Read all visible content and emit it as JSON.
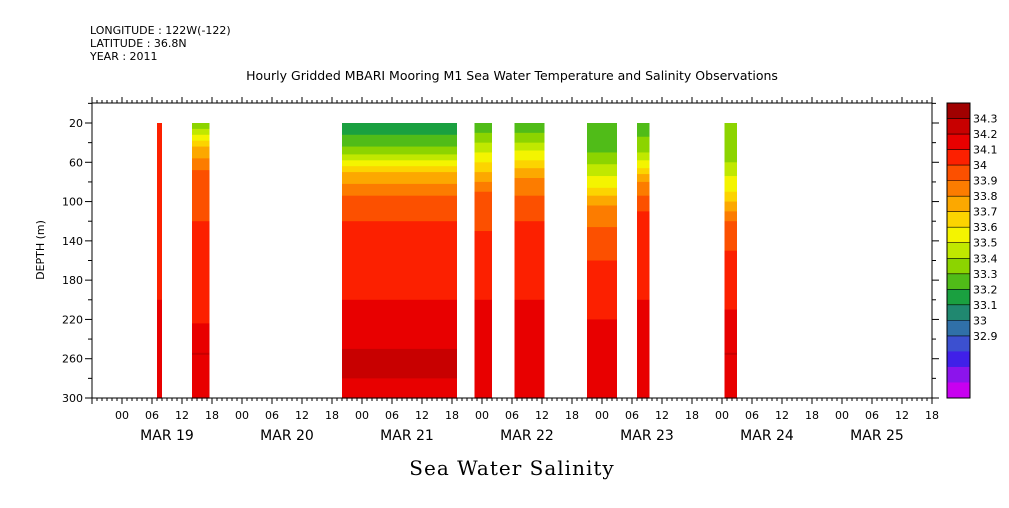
{
  "header": {
    "longitude": "LONGITUDE : 122W(-122)",
    "latitude": "LATITUDE : 36.8N",
    "year": "YEAR : 2011"
  },
  "chart_data": {
    "type": "heatmap",
    "title": "Hourly Gridded MBARI Mooring M1 Sea Water Temperature and Salinity Observations",
    "bottom_label": "Sea Water Salinity",
    "ylabel": "DEPTH (m)",
    "x_unit": "hours since 2011-03-18 18:00",
    "xlim": [
      0,
      168
    ],
    "ylim": [
      300,
      0
    ],
    "y_ticks": [
      20,
      60,
      100,
      140,
      180,
      220,
      260,
      300
    ],
    "x_hour_ticks": [
      {
        "x": 6,
        "label": "00"
      },
      {
        "x": 12,
        "label": "06"
      },
      {
        "x": 18,
        "label": "12"
      },
      {
        "x": 24,
        "label": "18"
      },
      {
        "x": 30,
        "label": "00"
      },
      {
        "x": 36,
        "label": "06"
      },
      {
        "x": 42,
        "label": "12"
      },
      {
        "x": 48,
        "label": "18"
      },
      {
        "x": 54,
        "label": "00"
      },
      {
        "x": 60,
        "label": "06"
      },
      {
        "x": 66,
        "label": "12"
      },
      {
        "x": 72,
        "label": "18"
      },
      {
        "x": 78,
        "label": "00"
      },
      {
        "x": 84,
        "label": "06"
      },
      {
        "x": 90,
        "label": "12"
      },
      {
        "x": 96,
        "label": "18"
      },
      {
        "x": 102,
        "label": "00"
      },
      {
        "x": 108,
        "label": "06"
      },
      {
        "x": 114,
        "label": "12"
      },
      {
        "x": 120,
        "label": "18"
      },
      {
        "x": 126,
        "label": "00"
      },
      {
        "x": 132,
        "label": "06"
      },
      {
        "x": 138,
        "label": "12"
      },
      {
        "x": 144,
        "label": "18"
      },
      {
        "x": 150,
        "label": "00"
      },
      {
        "x": 156,
        "label": "06"
      },
      {
        "x": 162,
        "label": "12"
      },
      {
        "x": 168,
        "label": "18"
      }
    ],
    "x_date_labels": [
      {
        "x": 15,
        "label": "MAR 19"
      },
      {
        "x": 39,
        "label": "MAR 20"
      },
      {
        "x": 63,
        "label": "MAR 21"
      },
      {
        "x": 87,
        "label": "MAR 22"
      },
      {
        "x": 111,
        "label": "MAR 23"
      },
      {
        "x": 135,
        "label": "MAR 24"
      },
      {
        "x": 157,
        "label": "MAR 25"
      }
    ],
    "colorbar": {
      "levels": [
        34.3,
        34.2,
        34.1,
        34,
        33.9,
        33.8,
        33.7,
        33.6,
        33.5,
        33.4,
        33.3,
        33.2,
        33.1,
        33,
        32.9
      ],
      "colors": [
        "#a00000",
        "#c80000",
        "#e80000",
        "#fc2000",
        "#fc5000",
        "#fc7c00",
        "#fca800",
        "#fcd400",
        "#f4f400",
        "#c0e800",
        "#8cd400",
        "#50bc18",
        "#1aa040",
        "#208870",
        "#3070a8",
        "#3c50d0",
        "#4020e8",
        "#8c14ec",
        "#c800f0"
      ]
    },
    "series": [
      {
        "x0": 13,
        "x1": 14,
        "profile": [
          [
            20,
            34.0
          ],
          [
            40,
            34.05
          ],
          [
            200,
            34.1
          ],
          [
            250,
            34.2
          ],
          [
            300,
            34.1
          ]
        ]
      },
      {
        "x0": 20,
        "x1": 23.5,
        "profile": [
          [
            20,
            33.3
          ],
          [
            45,
            33.7
          ],
          [
            75,
            33.95
          ],
          [
            120,
            34.0
          ],
          [
            180,
            34.05
          ],
          [
            225,
            34.1
          ],
          [
            255,
            34.2
          ],
          [
            300,
            34.1
          ]
        ]
      },
      {
        "x0": 50,
        "x1": 73,
        "profile": [
          [
            20,
            33.1
          ],
          [
            45,
            33.3
          ],
          [
            70,
            33.7
          ],
          [
            100,
            33.95
          ],
          [
            140,
            34.05
          ],
          [
            200,
            34.1
          ],
          [
            240,
            34.15
          ],
          [
            260,
            34.25
          ],
          [
            300,
            34.15
          ]
        ]
      },
      {
        "x0": 76.5,
        "x1": 80,
        "profile": [
          [
            20,
            33.2
          ],
          [
            50,
            33.5
          ],
          [
            90,
            33.9
          ],
          [
            130,
            34.0
          ],
          [
            200,
            34.1
          ],
          [
            260,
            34.2
          ],
          [
            300,
            34.1
          ]
        ]
      },
      {
        "x0": 84.5,
        "x1": 90.5,
        "profile": [
          [
            20,
            33.2
          ],
          [
            40,
            33.4
          ],
          [
            80,
            33.85
          ],
          [
            120,
            34.0
          ],
          [
            200,
            34.1
          ],
          [
            260,
            34.2
          ],
          [
            300,
            34.1
          ]
        ]
      },
      {
        "x0": 99,
        "x1": 105,
        "profile": [
          [
            20,
            33.2
          ],
          [
            50,
            33.3
          ],
          [
            80,
            33.55
          ],
          [
            110,
            33.85
          ],
          [
            160,
            34.0
          ],
          [
            220,
            34.1
          ],
          [
            260,
            34.2
          ],
          [
            300,
            34.1
          ]
        ]
      },
      {
        "x0": 109,
        "x1": 111.5,
        "profile": [
          [
            20,
            33.2
          ],
          [
            50,
            33.4
          ],
          [
            80,
            33.8
          ],
          [
            110,
            34.0
          ],
          [
            200,
            34.1
          ],
          [
            260,
            34.15
          ],
          [
            300,
            34.1
          ]
        ]
      },
      {
        "x0": 126.5,
        "x1": 129,
        "profile": [
          [
            20,
            33.3
          ],
          [
            60,
            33.4
          ],
          [
            90,
            33.6
          ],
          [
            120,
            33.9
          ],
          [
            150,
            34.0
          ],
          [
            210,
            34.1
          ],
          [
            255,
            34.2
          ],
          [
            300,
            34.1
          ]
        ]
      }
    ]
  }
}
